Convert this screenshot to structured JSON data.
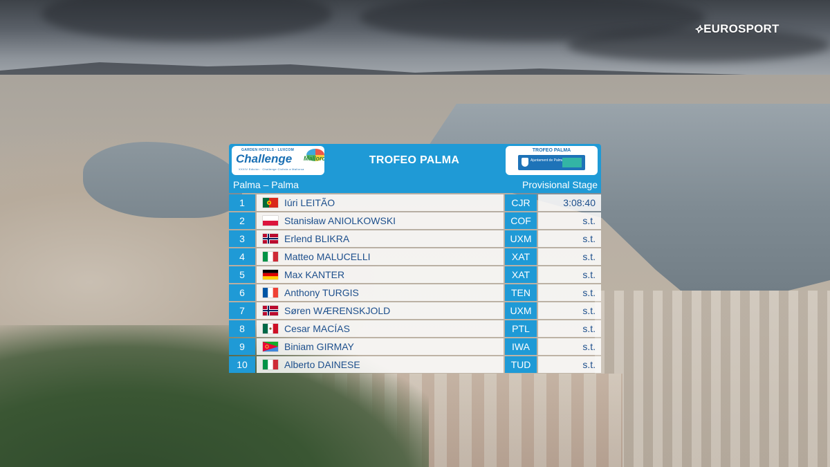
{
  "broadcaster": {
    "name": "EUROSPORT",
    "icon": "eurosport-logo-icon"
  },
  "board": {
    "sponsor_logo": {
      "top_line": "GARDEN HOTELS · LUXCOM",
      "main": "Challenge",
      "sub": "Mallorca",
      "foot": "XXXIV Edición · Challenge Ciclista a Mallorca"
    },
    "title": "TROFEO PALMA",
    "partner_logo": {
      "top_line": "TROFEO PALMA",
      "text": "Ajuntament de Palma"
    },
    "route": "Palma – Palma",
    "stage_label": "Provisional Stage",
    "colors": {
      "accent": "#1f9ad6",
      "name_text": "#1d4f8c",
      "row_bg": "#ffffff"
    },
    "results": [
      {
        "pos": "1",
        "flag": "portugal",
        "rider": "Iúri LEITÃO",
        "team": "CJR",
        "time": "3:08:40"
      },
      {
        "pos": "2",
        "flag": "poland",
        "rider": "Stanisław ANIOLKOWSKI",
        "team": "COF",
        "time": "s.t."
      },
      {
        "pos": "3",
        "flag": "norway",
        "rider": "Erlend BLIKRA",
        "team": "UXM",
        "time": "s.t."
      },
      {
        "pos": "4",
        "flag": "italy",
        "rider": "Matteo MALUCELLI",
        "team": "XAT",
        "time": "s.t."
      },
      {
        "pos": "5",
        "flag": "germany",
        "rider": "Max KANTER",
        "team": "XAT",
        "time": "s.t."
      },
      {
        "pos": "6",
        "flag": "france",
        "rider": "Anthony TURGIS",
        "team": "TEN",
        "time": "s.t."
      },
      {
        "pos": "7",
        "flag": "norway",
        "rider": "Søren WÆRENSKJOLD",
        "team": "UXM",
        "time": "s.t."
      },
      {
        "pos": "8",
        "flag": "mexico",
        "rider": "Cesar MACÍAS",
        "team": "PTL",
        "time": "s.t."
      },
      {
        "pos": "9",
        "flag": "eritrea",
        "rider": "Biniam GIRMAY",
        "team": "IWA",
        "time": "s.t."
      },
      {
        "pos": "10",
        "flag": "italy",
        "rider": "Alberto DAINESE",
        "team": "TUD",
        "time": "s.t."
      }
    ]
  }
}
